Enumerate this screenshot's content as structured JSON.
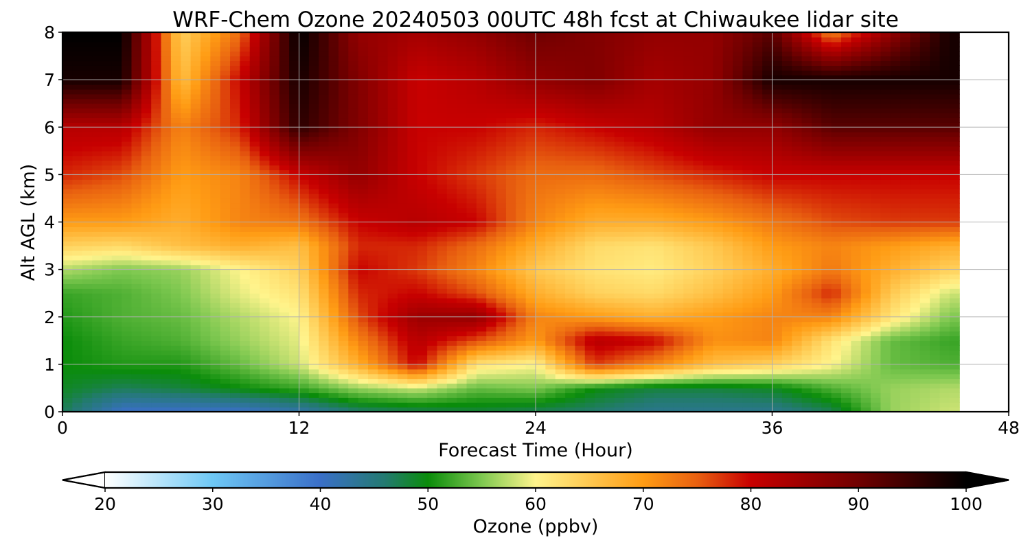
{
  "chart_data": {
    "type": "heatmap",
    "title": "WRF-Chem Ozone  20240503 00UTC 48h fcst at Chiwaukee lidar site",
    "xlabel": "Forecast Time (Hour)",
    "ylabel": "Alt AGL (km)",
    "xlim": [
      0,
      48
    ],
    "ylim": [
      0,
      8
    ],
    "xticks": [
      0,
      12,
      24,
      36,
      48
    ],
    "yticks": [
      0,
      1,
      2,
      3,
      4,
      5,
      6,
      7,
      8
    ],
    "grid": true,
    "data_end_hour": 45.5,
    "colorbar": {
      "label": "Ozone  (ppbv)",
      "min": 20,
      "max": 100,
      "ticks": [
        20,
        30,
        40,
        50,
        60,
        70,
        80,
        90,
        100
      ],
      "extend": "both",
      "stops": [
        {
          "value": 20,
          "color": "#ffffff"
        },
        {
          "value": 30,
          "color": "#6ec8f5"
        },
        {
          "value": 40,
          "color": "#3a6fc8"
        },
        {
          "value": 46,
          "color": "#237a70"
        },
        {
          "value": 50,
          "color": "#0a8c0a"
        },
        {
          "value": 55,
          "color": "#7ec850"
        },
        {
          "value": 60,
          "color": "#fff48c"
        },
        {
          "value": 70,
          "color": "#ff9c14"
        },
        {
          "value": 75,
          "color": "#e86010"
        },
        {
          "value": 80,
          "color": "#c80000"
        },
        {
          "value": 90,
          "color": "#700000"
        },
        {
          "value": 100,
          "color": "#000000"
        }
      ]
    },
    "hours": [
      0,
      3,
      6,
      9,
      12,
      15,
      18,
      21,
      24,
      27,
      30,
      33,
      36,
      39,
      42,
      45
    ],
    "altitudes_km": [
      0,
      0.5,
      1,
      1.5,
      2,
      2.5,
      3,
      3.5,
      4,
      5,
      6,
      7,
      8
    ],
    "values": [
      [
        47,
        40,
        40,
        40,
        42,
        46,
        47,
        48,
        47,
        46,
        44,
        44,
        44,
        47,
        56,
        58
      ],
      [
        49,
        47,
        48,
        50,
        52,
        56,
        58,
        54,
        55,
        50,
        48,
        48,
        49,
        53,
        56,
        57
      ],
      [
        50,
        51,
        51,
        54,
        58,
        68,
        80,
        62,
        60,
        77,
        72,
        66,
        64,
        60,
        54,
        53
      ],
      [
        50,
        52,
        53,
        56,
        59,
        72,
        82,
        76,
        70,
        82,
        80,
        71,
        72,
        62,
        54,
        52
      ],
      [
        51,
        53,
        54,
        57,
        60,
        76,
        85,
        86,
        72,
        70,
        68,
        70,
        72,
        72,
        62,
        55
      ],
      [
        52,
        53,
        55,
        59,
        62,
        78,
        80,
        76,
        68,
        64,
        63,
        66,
        70,
        78,
        65,
        58
      ],
      [
        57,
        55,
        56,
        60,
        64,
        80,
        77,
        72,
        65,
        62,
        61,
        64,
        68,
        73,
        68,
        64
      ],
      [
        64,
        63,
        66,
        68,
        66,
        78,
        78,
        74,
        68,
        63,
        62,
        65,
        70,
        72,
        70,
        68
      ],
      [
        70,
        70,
        68,
        72,
        73,
        80,
        82,
        80,
        72,
        68,
        68,
        70,
        73,
        76,
        77,
        77
      ],
      [
        78,
        76,
        70,
        72,
        80,
        86,
        80,
        77,
        74,
        74,
        76,
        78,
        80,
        80,
        80,
        80
      ],
      [
        82,
        82,
        72,
        78,
        96,
        88,
        80,
        80,
        78,
        80,
        82,
        86,
        86,
        92,
        92,
        92
      ],
      [
        98,
        98,
        66,
        80,
        98,
        88,
        80,
        82,
        86,
        88,
        84,
        86,
        98,
        98,
        98,
        98
      ],
      [
        100,
        100,
        64,
        74,
        100,
        86,
        84,
        86,
        90,
        88,
        86,
        86,
        92,
        72,
        86,
        98
      ]
    ]
  }
}
